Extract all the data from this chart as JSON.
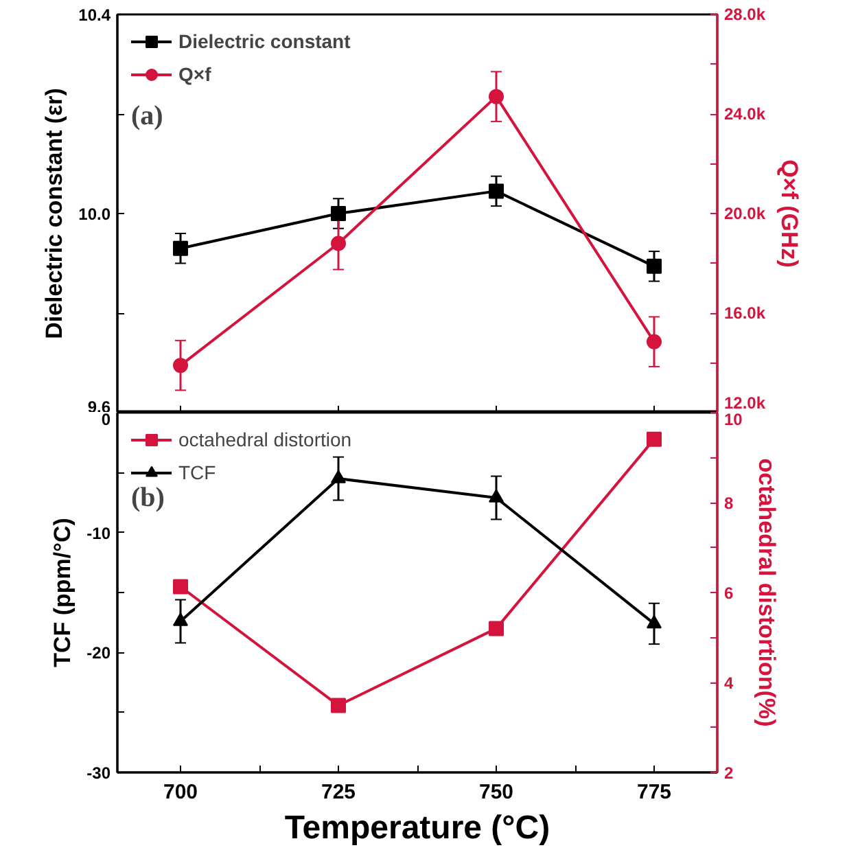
{
  "chart_data": [
    {
      "type": "line",
      "x": [
        700,
        725,
        750,
        775
      ],
      "xlim": [
        690,
        785
      ],
      "xticks": [
        700,
        725,
        750,
        775
      ],
      "tick_labels": "y",
      "ylabel": "Dielectric constant (εr)",
      "y2label": "Q×f (GHz)",
      "ylim": [
        9.6,
        10.4
      ],
      "yticks": [
        9.6,
        {
          "value": 9.8,
          "label": null
        },
        {
          "value": 10.0,
          "label": "10.0"
        },
        {
          "value": 10.2,
          "label": null
        },
        10.4
      ],
      "y2lim": [
        12000,
        28000
      ],
      "y2ticks": [
        {
          "value": 12000,
          "label": "12.0k"
        },
        {
          "value": 14000,
          "label": null
        },
        {
          "value": 16000,
          "label": "16.0k"
        },
        {
          "value": 18000,
          "label": null
        },
        {
          "value": 20000,
          "label": "20.0k"
        },
        {
          "value": 22000,
          "label": null
        },
        {
          "value": 24000,
          "label": "24.0k"
        },
        {
          "value": 26000,
          "label": null
        },
        {
          "value": 28000,
          "label": "28.0k"
        }
      ],
      "legend": "top left",
      "annotations": [
        "(a)"
      ],
      "series": [
        {
          "name": "Dielectric constant",
          "color": "#000000",
          "marker": "square",
          "values": [
            9.93,
            10.0,
            10.045,
            9.894
          ],
          "errors": [
            0.03,
            0.03,
            0.03,
            0.03
          ]
        },
        {
          "name": "Q×f",
          "color": "#d4143c",
          "marker": "circle",
          "axis": "y2",
          "values": [
            13900,
            18800,
            24700,
            14850
          ],
          "errors": [
            1000,
            1050,
            1000,
            1000
          ]
        }
      ]
    },
    {
      "type": "line",
      "x": [
        700,
        725,
        750,
        775
      ],
      "xlim": [
        690,
        785
      ],
      "xticks": [
        700,
        {
          "value": 712.5,
          "label": null
        },
        725,
        {
          "value": 737.5,
          "label": null
        },
        750,
        {
          "value": 762.5,
          "label": null
        },
        775
      ],
      "xlabel": "Temperature (°C)",
      "ylabel": "TCF (ppm/°C)",
      "y2label": "octahedral distortion(%)",
      "ylim": [
        -30,
        0
      ],
      "yticks": [
        -30,
        {
          "value": -25,
          "label": null
        },
        -20,
        {
          "value": -15,
          "label": null
        },
        -10,
        {
          "value": -5,
          "label": null
        },
        0
      ],
      "y2lim": [
        2,
        10
      ],
      "y2ticks": [
        2,
        {
          "value": 3,
          "label": null
        },
        4,
        {
          "value": 5,
          "label": null
        },
        6,
        {
          "value": 7,
          "label": null
        },
        8,
        {
          "value": 9,
          "label": null
        },
        10
      ],
      "legend": "top left",
      "annotations": [
        "(b)"
      ],
      "series": [
        {
          "name": "octahedral distortion",
          "color": "#d4143c",
          "marker": "square",
          "axis": "y2",
          "values": [
            6.13,
            3.49,
            5.2,
            9.41
          ]
        },
        {
          "name": "TCF",
          "color": "#000000",
          "marker": "triangle",
          "values": [
            -17.4,
            -5.5,
            -7.1,
            -17.6
          ],
          "errors": [
            1.8,
            1.8,
            1.8,
            1.7
          ]
        }
      ]
    }
  ]
}
